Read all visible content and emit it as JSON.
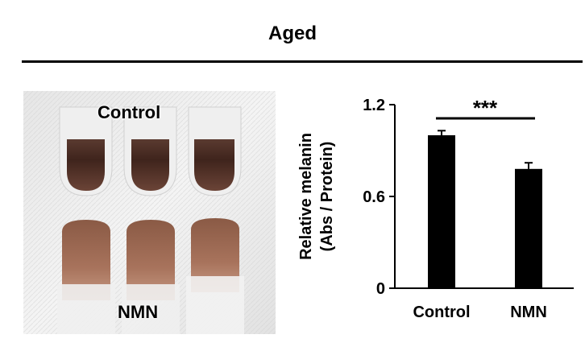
{
  "header": {
    "title": "Aged"
  },
  "photo": {
    "label_top": "Control",
    "label_bottom": "NMN"
  },
  "chart_data": {
    "type": "bar",
    "categories": [
      "Control",
      "NMN"
    ],
    "series": [
      {
        "values": [
          1.0,
          0.78
        ],
        "error": [
          0.03,
          0.04
        ]
      }
    ],
    "ylabel": "Relative melanin\n(Abs / Protein)",
    "ylim": [
      0,
      1.2
    ],
    "yticks": [
      "0",
      "0.6",
      "1.2"
    ],
    "significance": "***",
    "colors": {
      "bar": "#000000"
    },
    "grid": false
  }
}
